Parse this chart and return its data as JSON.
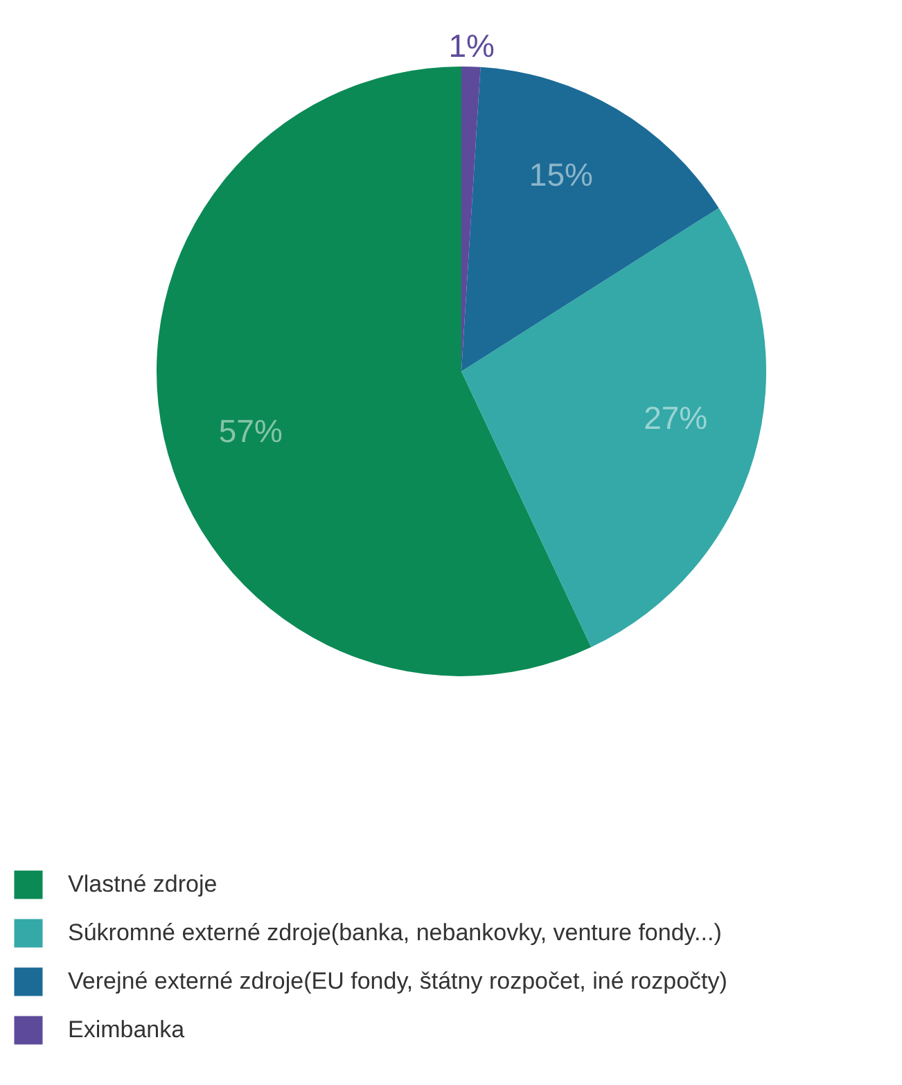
{
  "chart_data": {
    "type": "pie",
    "categories": [
      "Vlastné zdroje",
      "Súkromné externé zdroje(banka, nebankovky, venture fondy...)",
      "Verejné externé zdroje(EU fondy, štátny rozpočet, iné rozpočty)",
      "Eximbanka"
    ],
    "values": [
      57,
      27,
      15,
      1
    ],
    "colors": [
      "#0b8a55",
      "#34a9a8",
      "#1b6b96",
      "#5e4a9a"
    ],
    "value_labels": [
      "57%",
      "27%",
      "15%",
      "1%"
    ],
    "legend": "bottom left"
  }
}
